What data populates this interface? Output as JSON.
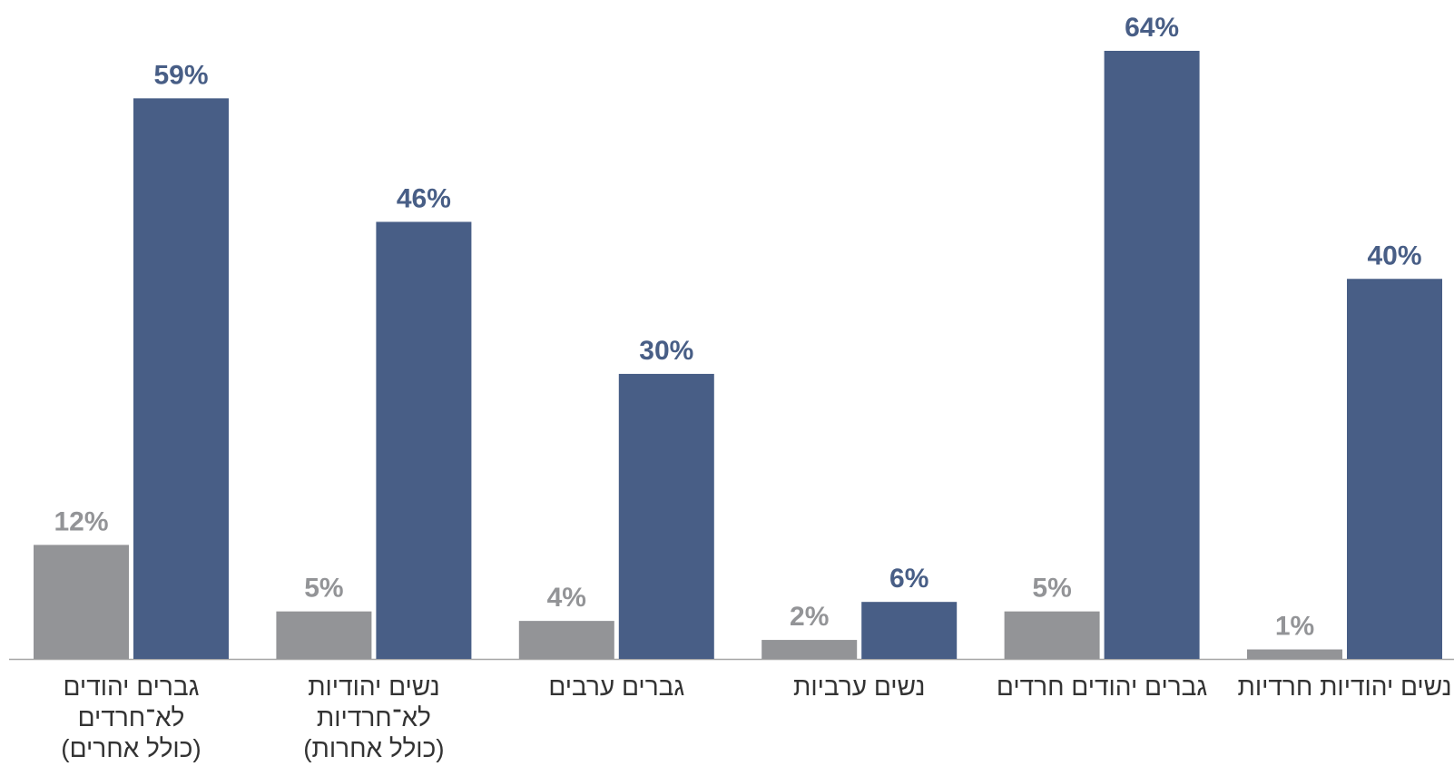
{
  "chart_data": {
    "type": "bar",
    "categories": [
      [
        "גברים יהודים",
        "לא־חרדים",
        "(כולל אחרים)"
      ],
      [
        "נשים יהודיות",
        "לא־חרדיות",
        "(כולל אחרות)"
      ],
      [
        "גברים ערבים"
      ],
      [
        "נשים ערביות"
      ],
      [
        "גברים יהודים חרדים"
      ],
      [
        "נשים יהודיות חרדיות"
      ]
    ],
    "series": [
      {
        "values": [
          12,
          5,
          4,
          2,
          5,
          1
        ],
        "color": "#939497"
      },
      {
        "values": [
          59,
          46,
          30,
          6,
          64,
          40
        ],
        "color": "#485e86"
      }
    ],
    "value_suffix": "%",
    "ylim": [
      0,
      64
    ],
    "grid": false,
    "legend": "none",
    "baseline_color": "#a6a6a6",
    "title": "",
    "xlabel": "",
    "ylabel": ""
  }
}
